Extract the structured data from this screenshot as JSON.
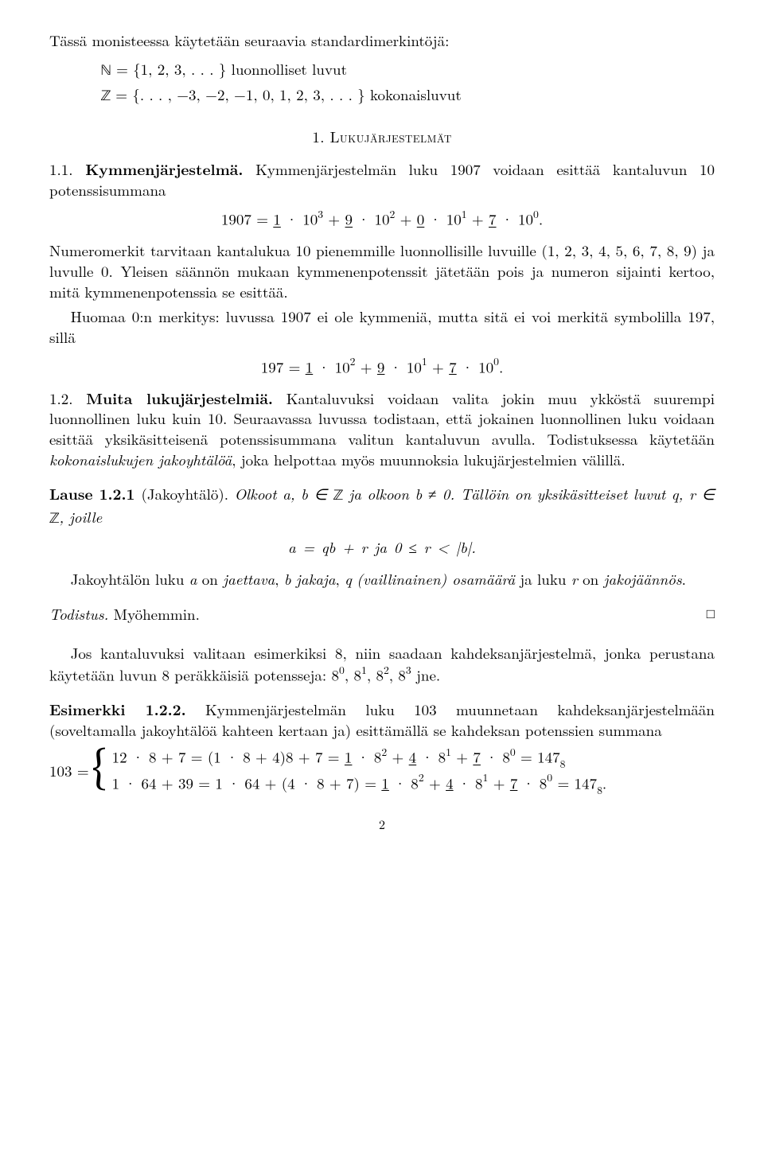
{
  "intro": {
    "lead": "Tässä monisteessa käytetään seuraavia standardimerkintöjä:",
    "N_sym": "ℕ",
    "N_def": " = {1, 2, 3, . . . } luonnolliset luvut",
    "Z_sym": "ℤ",
    "Z_def": " = {. . . , −3, −2, −1, 0, 1, 2, 3, . . . } kokonaisluvut"
  },
  "sec1": {
    "title": "1. Lukujärjestelmät",
    "h11_num": "1.1. ",
    "h11_title": "Kymmenjärjestelmä.",
    "h11_tail": " Kymmenjärjestelmän luku 1907 voidaan esittää kantaluvun 10 potenssisummana",
    "eq1_pre": "1907 = ",
    "eq1_a": "1",
    "eq1_b": " · 10",
    "eq1_c": "3",
    "eq1_d": " + ",
    "eq1_e": "9",
    "eq1_f": " · 10",
    "eq1_g": "2",
    "eq1_h": " + ",
    "eq1_i": "0",
    "eq1_j": " · 10",
    "eq1_k": "1",
    "eq1_l": " + ",
    "eq1_m": "7",
    "eq1_n": " · 10",
    "eq1_o": "0",
    "eq1_p": ".",
    "p2": "Numeromerkit tarvitaan kantalukua 10 pienemmille luonnollisille luvuille (1, 2, 3, 4, 5, 6, 7, 8, 9) ja luvulle 0. Yleisen säännön mukaan kymmenenpotenssit jätetään pois ja numeron sijainti kertoo, mitä kymmenenpotenssia se esittää.",
    "p3": "Huomaa 0:n merkitys: luvussa 1907 ei ole kymmeniä, mutta sitä ei voi merkitä symbolilla 197, sillä",
    "eq2_pre": "197 = ",
    "eq2_a": "1",
    "eq2_b": " · 10",
    "eq2_c": "2",
    "eq2_d": " + ",
    "eq2_e": "9",
    "eq2_f": " · 10",
    "eq2_g": "1",
    "eq2_h": " + ",
    "eq2_i": "7",
    "eq2_j": " · 10",
    "eq2_k": "0",
    "eq2_l": ".",
    "h12_num": "1.2. ",
    "h12_title": "Muita lukujärjestelmiä.",
    "h12_tail": " Kantaluvuksi voidaan valita jokin muu ykköstä suurempi luonnollinen luku kuin 10. Seuraavassa luvussa todistaan, että jokainen luonnollinen luku voidaan esittää yksikäsitteisenä potenssisummana valitun kantaluvun avulla. Todistuksessa käytetään ",
    "h12_em": "kokonaislukujen jakoyhtälöä",
    "h12_tail2": ", joka helpottaa myös muunnoksia lukujärjestelmien välillä.",
    "thm_head": "Lause 1.2.1 ",
    "thm_name": "(Jakoyhtälö).",
    "thm_body1": " Olkoot a, b ∈ ",
    "thm_Z1": "ℤ",
    "thm_body1b": " ja olkoon b ≠ 0. Tällöin on yksikäsitteiset luvut q, r ∈ ",
    "thm_Z2": "ℤ",
    "thm_body1c": ", joille",
    "thm_eq": "a = qb + r     ja    0 ≤ r < |b|.",
    "thm_after1": "Jakoyhtälön luku ",
    "thm_a": "a",
    "thm_after1b": " on ",
    "thm_em1": "jaettava",
    "thm_after1c": ", ",
    "thm_b": "b",
    "thm_after1d": " ",
    "thm_em2": "jakaja",
    "thm_after1e": ", ",
    "thm_q": "q",
    "thm_after1f": " ",
    "thm_em3": "(vaillinainen) osamäärä",
    "thm_after1g": " ja luku ",
    "thm_r": "r",
    "thm_after1h": " on ",
    "thm_em4": "jakojäännös",
    "thm_after1i": ".",
    "proof_head": "Todistus.",
    "proof_body": " Myöhemmin.",
    "qed": "□",
    "p_after_proof": "Jos kantaluvuksi valitaan esimerkiksi 8, niin saadaan kahdeksanjärjestelmä, jonka perustana käytetään luvun 8 peräkkäisiä potensseja: 8",
    "p_after_proof_s0": "0",
    "p_after_proof_1": ", 8",
    "p_after_proof_s1": "1",
    "p_after_proof_2": ", 8",
    "p_after_proof_s2": "2",
    "p_after_proof_3": ", 8",
    "p_after_proof_s3": "3",
    "p_after_proof_4": " jne.",
    "ex_head": "Esimerkki 1.2.2.",
    "ex_body": " Kymmenjärjestelmän luku 103 muunnetaan kahdeksanjärjestelmään (soveltamalla jakoyhtälöä kahteen kertaan ja) esittämällä se kahdeksan potenssien summana",
    "case_lhs": "103 = ",
    "case1_a": "12 · 8 + 7 = (1 · 8 + 4)8 + 7 = ",
    "case1_u1": "1",
    "case1_b": " · 8",
    "case1_s2": "2",
    "case1_c": " + ",
    "case1_u4": "4",
    "case1_d": " · 8",
    "case1_s1": "1",
    "case1_e": " + ",
    "case1_u7": "7",
    "case1_f": " · 8",
    "case1_s0": "0",
    "case1_g": " = 147",
    "case1_sub8": "8",
    "case2_a": "1 · 64 + 39 = 1 · 64 + (4 · 8 + 7) = ",
    "case2_u1": "1",
    "case2_b": " · 8",
    "case2_s2": "2",
    "case2_c": " + ",
    "case2_u4": "4",
    "case2_d": " · 8",
    "case2_s1": "1",
    "case2_e": " + ",
    "case2_u7": "7",
    "case2_f": " · 8",
    "case2_s0": "0",
    "case2_g": " = 147",
    "case2_sub8": "8",
    "case2_h": "."
  },
  "pagenum": "2"
}
